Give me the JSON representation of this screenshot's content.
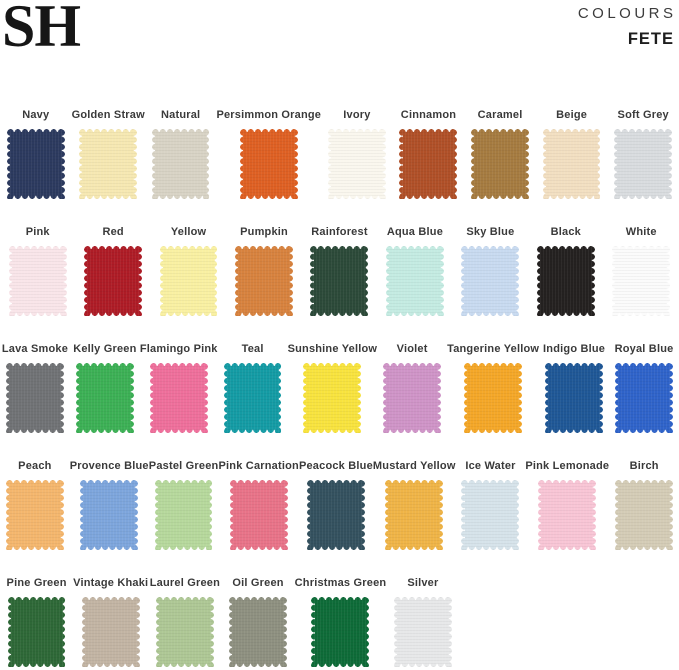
{
  "header": {
    "logo": "SH",
    "collection": "COLOURS",
    "palette": "FETE"
  },
  "colors": {
    "background": "#ffffff",
    "label_text": "#3a3a3a",
    "logo_text": "#161616"
  },
  "chart_data": {
    "type": "table",
    "title": "COLOURS — FETE fabric swatch colour chart",
    "columns_per_row": 9,
    "swatches": [
      {
        "name": "Navy",
        "hex": "#2c3a5f"
      },
      {
        "name": "Golden Straw",
        "hex": "#f6e8b2"
      },
      {
        "name": "Natural",
        "hex": "#d8d3c5"
      },
      {
        "name": "Persimmon Orange",
        "hex": "#de6023"
      },
      {
        "name": "Ivory",
        "hex": "#faf7ee"
      },
      {
        "name": "Cinnamon",
        "hex": "#b05028"
      },
      {
        "name": "Caramel",
        "hex": "#a57b40"
      },
      {
        "name": "Beige",
        "hex": "#f2dfc1"
      },
      {
        "name": "Soft Grey",
        "hex": "#d9dcdf"
      },
      {
        "name": "Pink",
        "hex": "#f9e5e9"
      },
      {
        "name": "Red",
        "hex": "#ae1c26"
      },
      {
        "name": "Yellow",
        "hex": "#f9f0a2"
      },
      {
        "name": "Pumpkin",
        "hex": "#d7823e"
      },
      {
        "name": "Rainforest",
        "hex": "#2c4a39"
      },
      {
        "name": "Aqua Blue",
        "hex": "#c4ebe2"
      },
      {
        "name": "Sky Blue",
        "hex": "#c8daf0"
      },
      {
        "name": "Black",
        "hex": "#242120"
      },
      {
        "name": "White",
        "hex": "#fbfbfb"
      },
      {
        "name": "Lava Smoke",
        "hex": "#707275"
      },
      {
        "name": "Kelly Green",
        "hex": "#3cb055"
      },
      {
        "name": "Flamingo Pink",
        "hex": "#ee6f9b"
      },
      {
        "name": "Teal",
        "hex": "#149ba4"
      },
      {
        "name": "Sunshine Yellow",
        "hex": "#f8e33e"
      },
      {
        "name": "Violet",
        "hex": "#cf94c7"
      },
      {
        "name": "Tangerine Yellow",
        "hex": "#f4a728"
      },
      {
        "name": "Indigo Blue",
        "hex": "#1f5796"
      },
      {
        "name": "Royal Blue",
        "hex": "#2f63c9"
      },
      {
        "name": "Peach",
        "hex": "#f4b66d"
      },
      {
        "name": "Provence Blue",
        "hex": "#7da5dc"
      },
      {
        "name": "Pastel Green",
        "hex": "#b6d89c"
      },
      {
        "name": "Pink Carnation",
        "hex": "#e87388"
      },
      {
        "name": "Peacock Blue",
        "hex": "#34515f"
      },
      {
        "name": "Mustard Yellow",
        "hex": "#efb447"
      },
      {
        "name": "Ice Water",
        "hex": "#d6e3ea"
      },
      {
        "name": "Pink Lemonade",
        "hex": "#f8c5d5"
      },
      {
        "name": "Birch",
        "hex": "#d4ccb6"
      },
      {
        "name": "Pine Green",
        "hex": "#2e6837"
      },
      {
        "name": "Vintage Khaki",
        "hex": "#c2b4a3"
      },
      {
        "name": "Laurel Green",
        "hex": "#aec795"
      },
      {
        "name": "Oil Green",
        "hex": "#8e9080"
      },
      {
        "name": "Christmas Green",
        "hex": "#0e6b38"
      },
      {
        "name": "Silver",
        "hex": "#e7e8e9"
      }
    ]
  }
}
